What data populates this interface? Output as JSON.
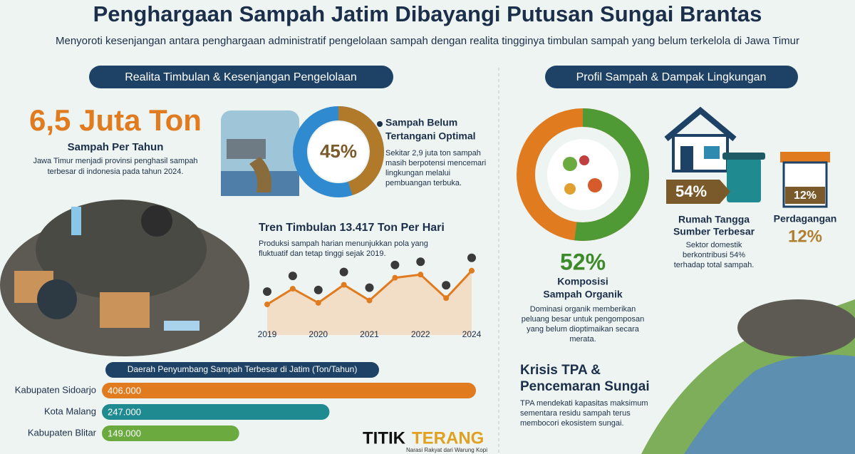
{
  "header": {
    "title": "Penghargaan Sampah Jatim Dibayangi Putusan Sungai Brantas",
    "subtitle": "Menyoroti kesenjangan antara penghargaan administratif pengelolaan sampah dengan realita tingginya timbulan sampah yang belum terkelola di Jawa Timur"
  },
  "left": {
    "heading": "Realita Timbulan & Kesenjangan Pengelolaan",
    "big": "6,5 Juta Ton",
    "big_sub": "Sampah Per Tahun",
    "big_desc": [
      "Jawa Timur menjadi provinsi penghasil sampah",
      "terbesar di indonesia pada tahun 2024."
    ],
    "donut": {
      "value": 45,
      "label": "45%",
      "title": [
        "Sampah Belum",
        "Tertangani Optimal"
      ],
      "desc": [
        "Sekitar 2,9 juta ton sampah",
        "masih berpotensi mencemari",
        "lingkungan melalui",
        "pembuangan terbuka."
      ]
    },
    "trend": {
      "title": "Tren Timbulan 13.417 Ton Per Hari",
      "desc": [
        "Produksi sampah harian menunjukkan pola yang",
        "fluktuatif dan tetap tinggi sejak 2019."
      ],
      "x_labels": [
        "2019",
        "2020",
        "2021",
        "2022",
        "2024"
      ],
      "values": [
        39,
        59,
        41,
        64,
        44,
        73,
        77,
        47,
        82
      ],
      "ylim": [
        0,
        100
      ]
    },
    "bars": {
      "title": "Daerah Penyumbang Sampah Terbesar di Jatim (Ton/Tahun)",
      "categories": [
        "Kabupaten Sidoarjo",
        "Kota Malang",
        "Kabupaten Blitar"
      ],
      "values": [
        406000,
        247000,
        149000
      ],
      "value_labels": [
        "406.000",
        "247.000",
        "149.000"
      ],
      "colors": [
        "#e07b1f",
        "#1f8a8f",
        "#6aaa3f"
      ],
      "xlim": [
        0,
        406000
      ]
    }
  },
  "right": {
    "heading": "Profil Sampah & Dampak Lingkungan",
    "donut": {
      "value": 52,
      "label": "52%",
      "title": [
        "Komposisi",
        "Sampah Organik"
      ],
      "desc": [
        "Dominasi organik memberikan",
        "peluang besar untuk pengomposan",
        "yang belum dioptimaikan secara",
        "merata."
      ]
    },
    "household": {
      "value": 54,
      "label": "54%",
      "title": [
        "Rumah Tangga",
        "Sumber Terbesar"
      ],
      "desc": [
        "Sektor domestik",
        "berkontribusi 54%",
        "terhadap total sampah."
      ]
    },
    "trade": {
      "value": 12,
      "label": "12%",
      "title": "Perdagangan",
      "big": "12%"
    },
    "crisis": {
      "title": [
        "Krisis TPA &",
        "Pencemaran Sungai"
      ],
      "desc": [
        "TPA mendekati kapasitas maksimum",
        "sementara residu sampah terus",
        "membocori ekosistem sungai."
      ]
    }
  },
  "footer": {
    "logo_a": "TITIK",
    "logo_b": "TERANG",
    "tagline": "Narasi Rakyat dari Warung Kopi"
  }
}
